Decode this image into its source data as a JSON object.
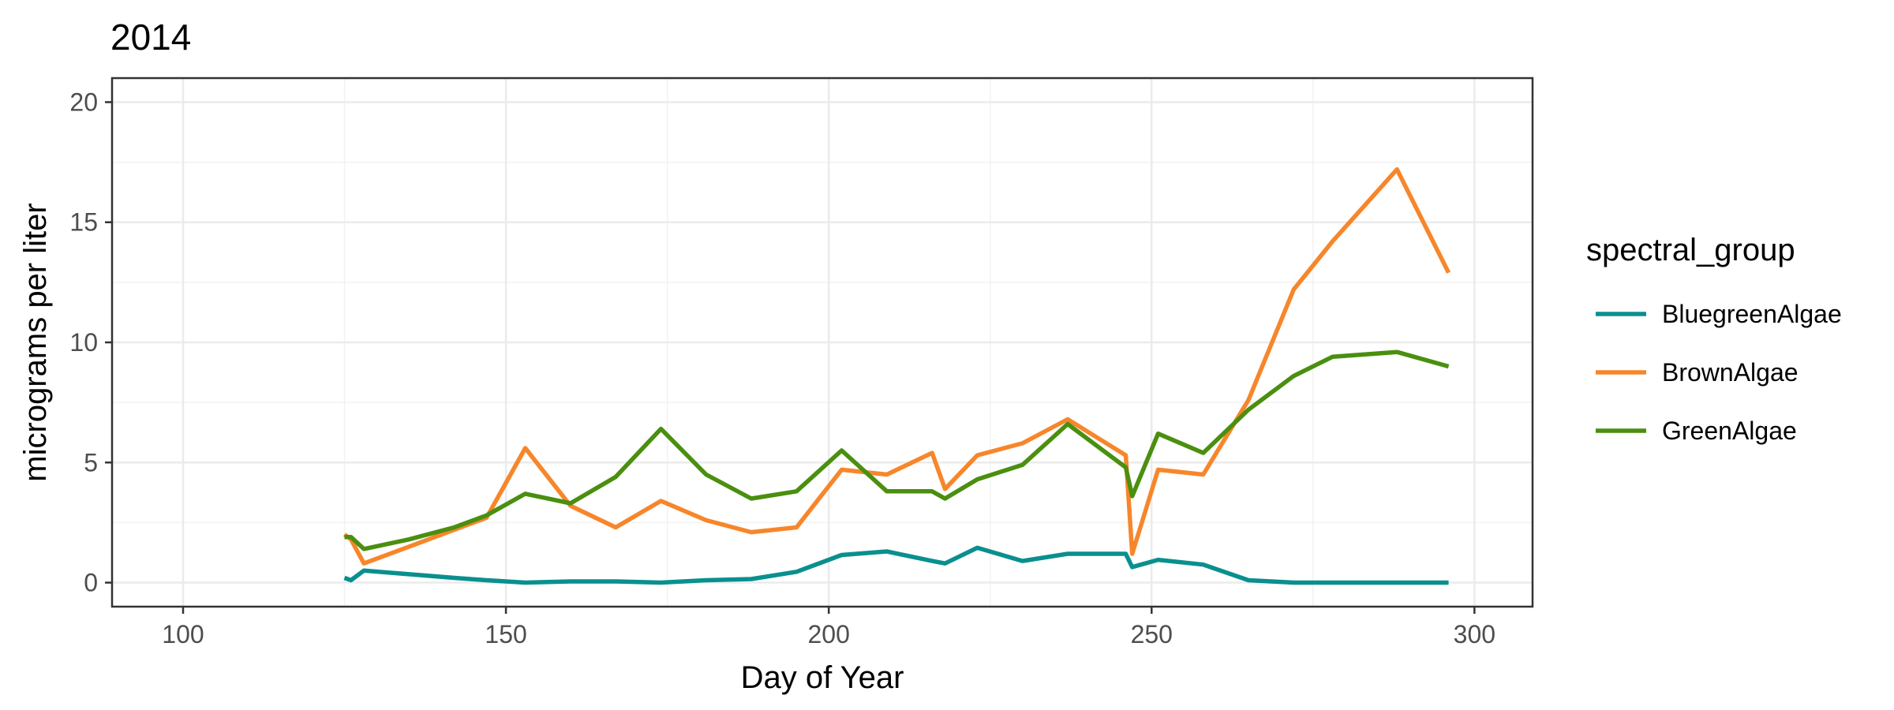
{
  "chart_data": {
    "type": "line",
    "title": "2014",
    "xlabel": "Day of Year",
    "ylabel": "micrograms per liter",
    "xlim": [
      89,
      309
    ],
    "ylim": [
      -1,
      21
    ],
    "xticks": [
      100,
      150,
      200,
      250,
      300
    ],
    "yticks": [
      0,
      5,
      10,
      15,
      20
    ],
    "grid": true,
    "legend": {
      "title": "spectral_group",
      "position": "right"
    },
    "series": [
      {
        "name": "BluegreenAlgae",
        "color": "#0A8F8F",
        "x": [
          125,
          126,
          128,
          135,
          142,
          147,
          153,
          160,
          167,
          174,
          181,
          188,
          195,
          202,
          209,
          216,
          218,
          223,
          230,
          237,
          246,
          247,
          251,
          258,
          265,
          272,
          278,
          288,
          296
        ],
        "y": [
          0.2,
          0.1,
          0.5,
          0.35,
          0.2,
          0.1,
          0.0,
          0.05,
          0.05,
          0.0,
          0.1,
          0.15,
          0.45,
          1.15,
          1.3,
          0.9,
          0.8,
          1.45,
          0.9,
          1.2,
          1.2,
          0.65,
          0.95,
          0.75,
          0.1,
          0.0,
          0.0,
          0.0,
          0.0
        ]
      },
      {
        "name": "BrownAlgae",
        "color": "#F7862B",
        "x": [
          125,
          126,
          128,
          135,
          142,
          147,
          153,
          160,
          167,
          174,
          181,
          188,
          195,
          202,
          209,
          216,
          218,
          223,
          230,
          237,
          246,
          247,
          251,
          258,
          265,
          272,
          278,
          288,
          296
        ],
        "y": [
          2.0,
          1.8,
          0.8,
          1.5,
          2.2,
          2.7,
          5.6,
          3.2,
          2.3,
          3.4,
          2.6,
          2.1,
          2.3,
          4.7,
          4.5,
          5.4,
          3.9,
          5.3,
          5.8,
          6.8,
          5.3,
          1.2,
          4.7,
          4.5,
          7.6,
          12.2,
          14.2,
          17.2,
          12.9
        ]
      },
      {
        "name": "GreenAlgae",
        "color": "#4A8F0F",
        "x": [
          125,
          126,
          128,
          135,
          142,
          147,
          153,
          160,
          167,
          174,
          181,
          188,
          195,
          202,
          209,
          216,
          218,
          223,
          230,
          237,
          246,
          247,
          251,
          258,
          265,
          272,
          278,
          288,
          296
        ],
        "y": [
          1.9,
          1.9,
          1.4,
          1.8,
          2.3,
          2.8,
          3.7,
          3.3,
          4.4,
          6.4,
          4.5,
          3.5,
          3.8,
          5.5,
          3.8,
          3.8,
          3.5,
          4.3,
          4.9,
          6.6,
          4.8,
          3.6,
          6.2,
          5.4,
          7.2,
          8.6,
          9.4,
          9.6,
          9.0
        ]
      }
    ]
  }
}
